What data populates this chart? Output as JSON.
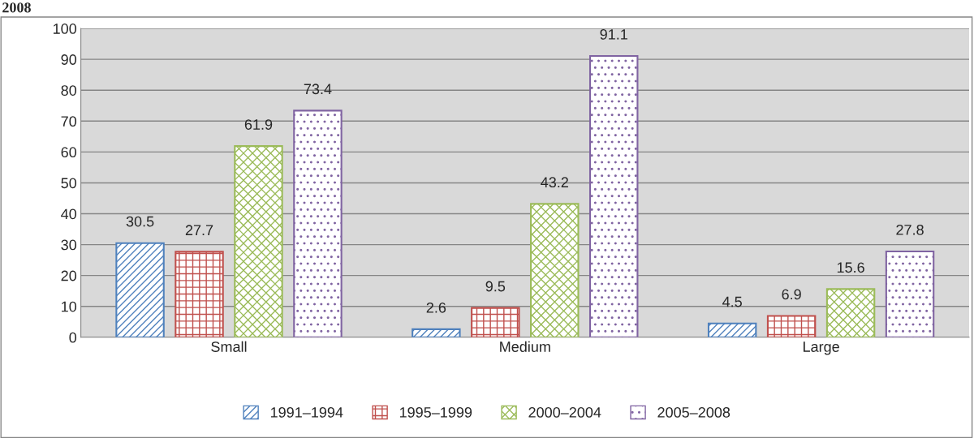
{
  "chart_data": {
    "type": "bar",
    "annotations": [
      "2008"
    ],
    "categories": [
      "Small",
      "Medium",
      "Large"
    ],
    "series": [
      {
        "name": "1991–1994",
        "color": "#4f81bd",
        "values": [
          30.5,
          2.6,
          4.5
        ]
      },
      {
        "name": "1995–1999",
        "color": "#c0504d",
        "values": [
          27.7,
          9.5,
          6.9
        ]
      },
      {
        "name": "2000–2004",
        "color": "#9bbb59",
        "values": [
          61.9,
          43.2,
          15.6
        ]
      },
      {
        "name": "2005–2008",
        "color": "#8064a2",
        "values": [
          73.4,
          91.1,
          27.8
        ]
      }
    ],
    "ylim": [
      0,
      100
    ],
    "yticks": [
      0,
      10,
      20,
      30,
      40,
      50,
      60,
      70,
      80,
      90,
      100
    ],
    "grid": "y",
    "legend": "bottom",
    "data_labels": true
  }
}
